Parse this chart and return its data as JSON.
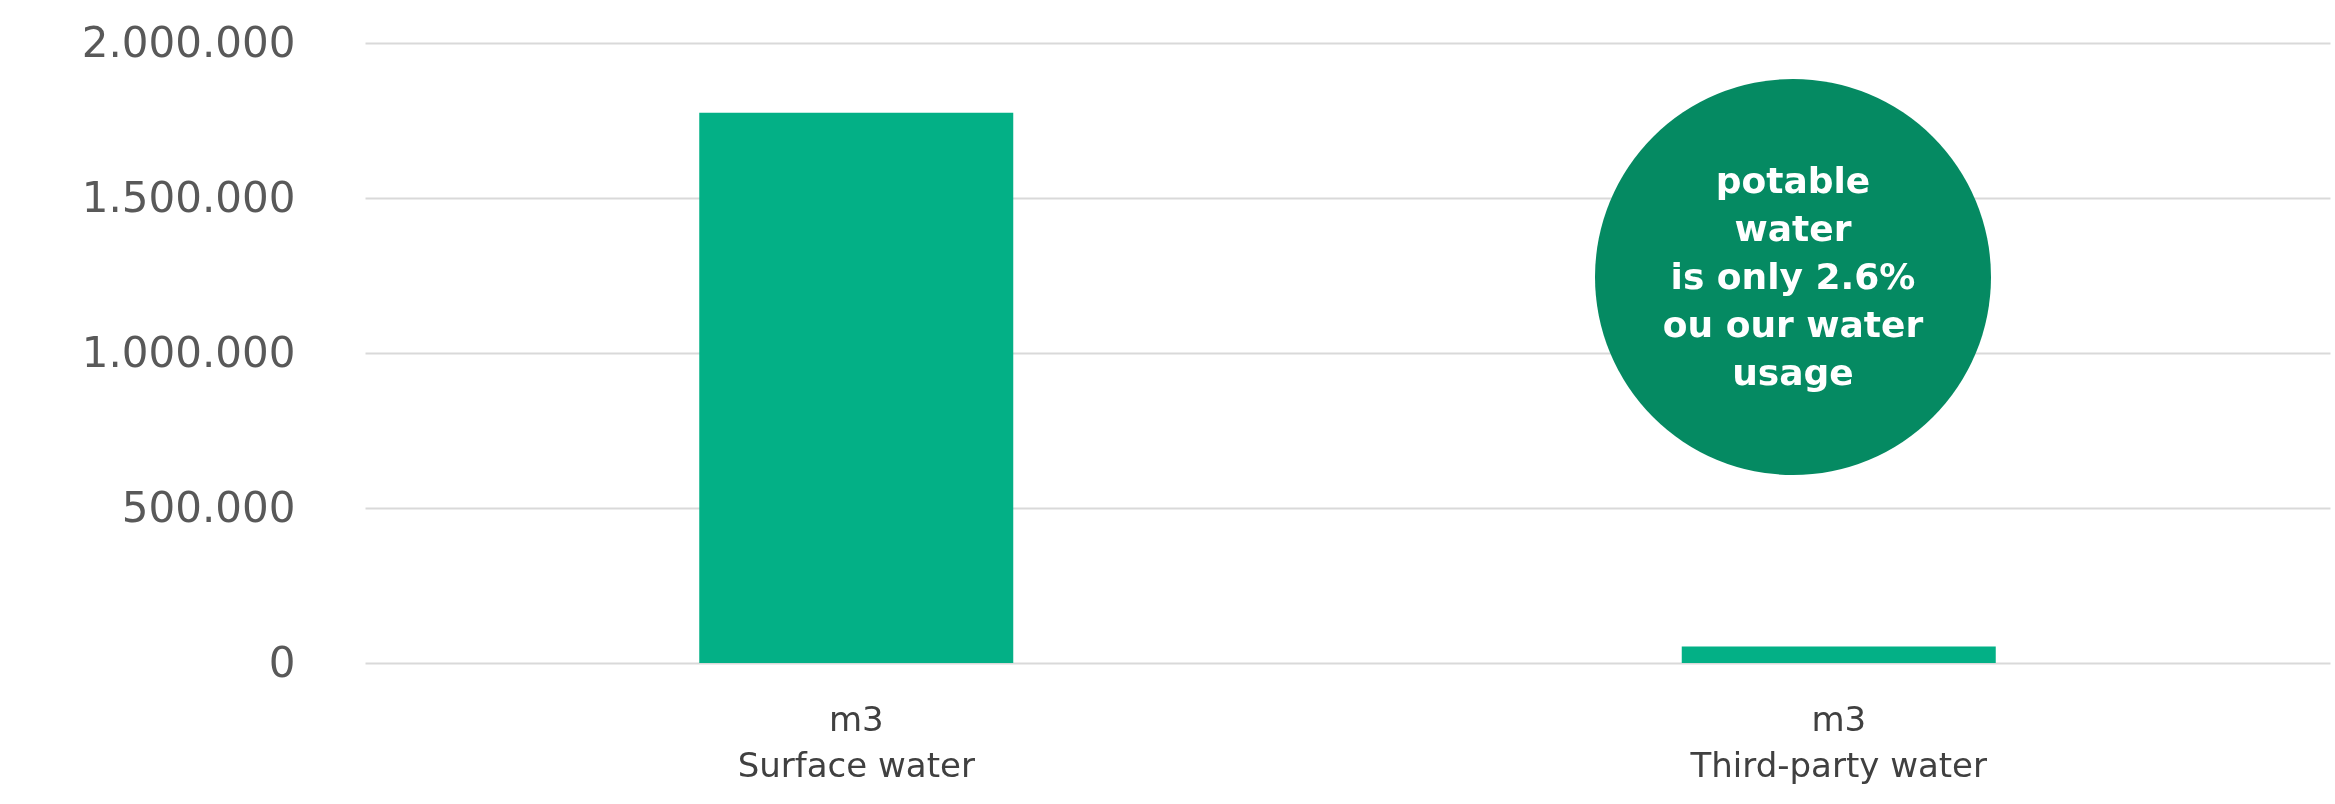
{
  "chart_data": {
    "type": "bar",
    "categories": [
      "m3\nSurface water",
      "m3\nThird-party water"
    ],
    "values": [
      1775000,
      53000
    ],
    "color": "#03b086",
    "ylim": [
      0,
      2000000
    ],
    "yticks": [
      0,
      {
        "value": 500000,
        "label": "500.000"
      },
      {
        "value": 1000000,
        "label": "1.000.000"
      },
      {
        "value": 1500000,
        "label": "1.500.000"
      },
      {
        "value": 2000000,
        "label": "2.000.000"
      }
    ],
    "grid": "y",
    "annotations": [
      "potable\nwater\nis only 2.6%\nou our water\nusage"
    ]
  }
}
